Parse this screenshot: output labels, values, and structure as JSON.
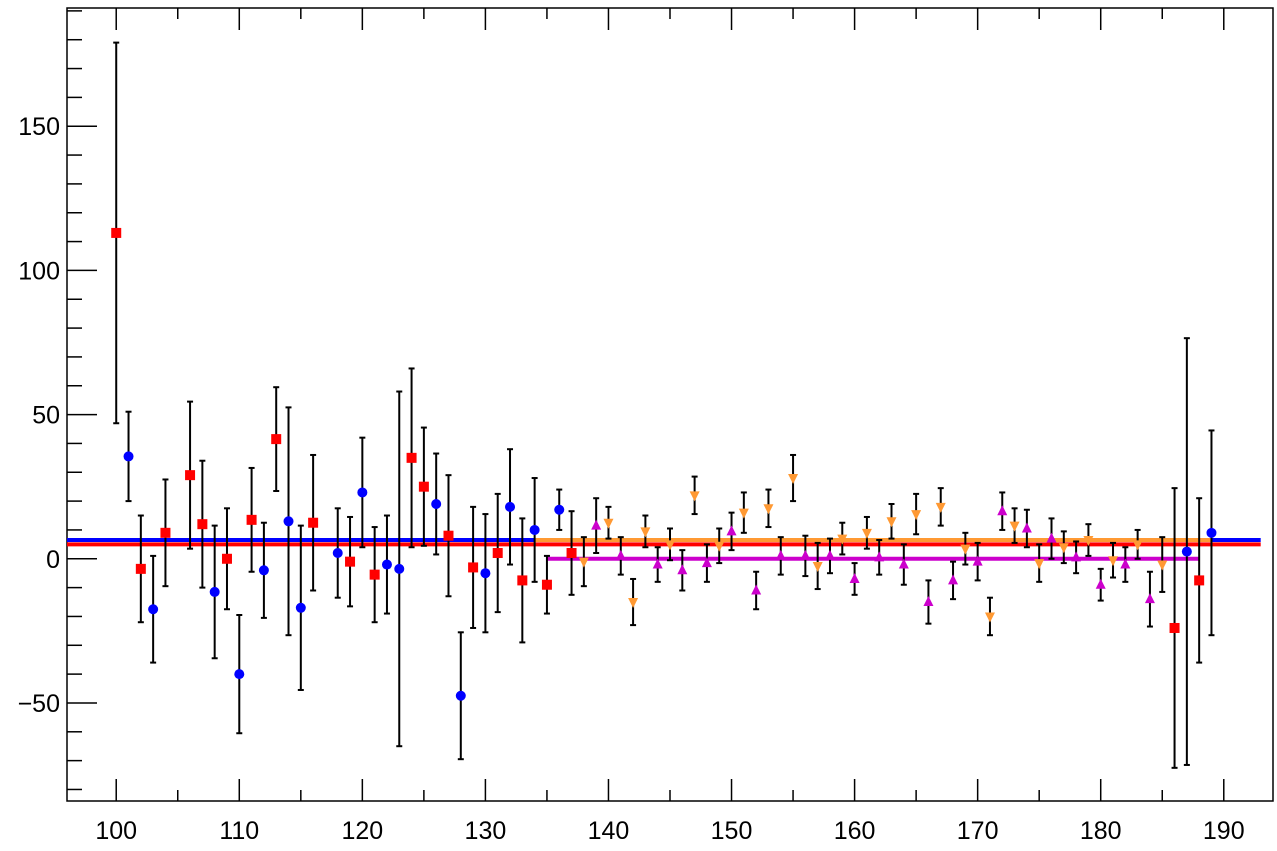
{
  "chart_data": {
    "type": "scatter",
    "title": "",
    "xlabel": "",
    "ylabel": "",
    "xlim": [
      96,
      194
    ],
    "ylim": [
      -84,
      191
    ],
    "x_ticks": [
      100,
      110,
      120,
      130,
      140,
      150,
      160,
      170,
      180,
      190
    ],
    "y_ticks": [
      -50,
      0,
      50,
      100,
      150
    ],
    "x_tick_labels": [
      "100",
      "110",
      "120",
      "130",
      "140",
      "150",
      "160",
      "170",
      "180",
      "190"
    ],
    "y_tick_labels": [
      "−50",
      "0",
      "50",
      "100",
      "150"
    ],
    "grid": false,
    "series": [
      {
        "marker": "circle",
        "color": "#0000ff",
        "points": [
          {
            "x": 101,
            "y": 35.5,
            "err": 15.5
          },
          {
            "x": 103,
            "y": -17.5,
            "err": 18.5
          },
          {
            "x": 108,
            "y": -11.5,
            "err": 23
          },
          {
            "x": 110,
            "y": -40,
            "err": 20.5
          },
          {
            "x": 112,
            "y": -4,
            "err": 16.5
          },
          {
            "x": 114,
            "y": 13,
            "err": 39.5
          },
          {
            "x": 115,
            "y": -17,
            "err": 28.5
          },
          {
            "x": 118,
            "y": 2,
            "err": 15.5
          },
          {
            "x": 120,
            "y": 23,
            "err": 19
          },
          {
            "x": 122,
            "y": -2,
            "err": 17
          },
          {
            "x": 123,
            "y": -3.5,
            "err": 61.5
          },
          {
            "x": 126,
            "y": 19,
            "err": 17.5
          },
          {
            "x": 128,
            "y": -47.5,
            "err": 22
          },
          {
            "x": 130,
            "y": -5,
            "err": 20.5
          },
          {
            "x": 132,
            "y": 18,
            "err": 20
          },
          {
            "x": 134,
            "y": 10,
            "err": 18
          },
          {
            "x": 136,
            "y": 17,
            "err": 7
          },
          {
            "x": 187,
            "y": 2.5,
            "err": 74
          },
          {
            "x": 189,
            "y": 9,
            "err": 35.5
          }
        ]
      },
      {
        "marker": "square",
        "color": "#ff0000",
        "points": [
          {
            "x": 100,
            "y": 113,
            "err": 66
          },
          {
            "x": 102,
            "y": -3.5,
            "err": 18.5
          },
          {
            "x": 104,
            "y": 9,
            "err": 18.5
          },
          {
            "x": 106,
            "y": 29,
            "err": 25.5
          },
          {
            "x": 107,
            "y": 12,
            "err": 22
          },
          {
            "x": 109,
            "y": 0,
            "err": 17.5
          },
          {
            "x": 111,
            "y": 13.5,
            "err": 18
          },
          {
            "x": 113,
            "y": 41.5,
            "err": 18
          },
          {
            "x": 116,
            "y": 12.5,
            "err": 23.5
          },
          {
            "x": 119,
            "y": -1,
            "err": 15.5
          },
          {
            "x": 121,
            "y": -5.5,
            "err": 16.5
          },
          {
            "x": 124,
            "y": 35,
            "err": 31
          },
          {
            "x": 125,
            "y": 25,
            "err": 20.5
          },
          {
            "x": 127,
            "y": 8,
            "err": 21
          },
          {
            "x": 129,
            "y": -3,
            "err": 21
          },
          {
            "x": 131,
            "y": 2,
            "err": 20.5
          },
          {
            "x": 133,
            "y": -7.5,
            "err": 21.5
          },
          {
            "x": 135,
            "y": -9,
            "err": 10
          },
          {
            "x": 137,
            "y": 2,
            "err": 14.5
          },
          {
            "x": 186,
            "y": -24,
            "err": 48.5
          },
          {
            "x": 188,
            "y": -7.5,
            "err": 28.5
          }
        ]
      },
      {
        "marker": "triangle-up",
        "color": "#cc00cc",
        "points": [
          {
            "x": 139,
            "y": 11.5,
            "err": 9.5
          },
          {
            "x": 141,
            "y": 1,
            "err": 6.5
          },
          {
            "x": 144,
            "y": -2,
            "err": 6
          },
          {
            "x": 146,
            "y": -4,
            "err": 7
          },
          {
            "x": 148,
            "y": -1.5,
            "err": 6.5
          },
          {
            "x": 150,
            "y": 9.5,
            "err": 6.5
          },
          {
            "x": 152,
            "y": -11,
            "err": 6.5
          },
          {
            "x": 154,
            "y": 1,
            "err": 6.5
          },
          {
            "x": 156,
            "y": 1,
            "err": 7
          },
          {
            "x": 158,
            "y": 1,
            "err": 6
          },
          {
            "x": 160,
            "y": -7,
            "err": 5.5
          },
          {
            "x": 162,
            "y": 0.5,
            "err": 6
          },
          {
            "x": 164,
            "y": -2,
            "err": 7
          },
          {
            "x": 166,
            "y": -15,
            "err": 7.5
          },
          {
            "x": 168,
            "y": -7.5,
            "err": 6.5
          },
          {
            "x": 170,
            "y": -1,
            "err": 6.5
          },
          {
            "x": 172,
            "y": 16.5,
            "err": 6.5
          },
          {
            "x": 174,
            "y": 10.5,
            "err": 6.5
          },
          {
            "x": 176,
            "y": 7,
            "err": 7
          },
          {
            "x": 178,
            "y": 0.5,
            "err": 5.5
          },
          {
            "x": 180,
            "y": -9,
            "err": 5.5
          },
          {
            "x": 182,
            "y": -2,
            "err": 6
          },
          {
            "x": 184,
            "y": -14,
            "err": 9.5
          }
        ]
      },
      {
        "marker": "triangle-down",
        "color": "#ff9933",
        "points": [
          {
            "x": 138,
            "y": -1,
            "err": 8.5
          },
          {
            "x": 140,
            "y": 12.5,
            "err": 5.5
          },
          {
            "x": 142,
            "y": -15,
            "err": 8
          },
          {
            "x": 143,
            "y": 9.5,
            "err": 5.5
          },
          {
            "x": 145,
            "y": 5,
            "err": 5.5
          },
          {
            "x": 147,
            "y": 22,
            "err": 6.5
          },
          {
            "x": 149,
            "y": 4.5,
            "err": 6
          },
          {
            "x": 151,
            "y": 16,
            "err": 7
          },
          {
            "x": 153,
            "y": 17.5,
            "err": 6.5
          },
          {
            "x": 155,
            "y": 28,
            "err": 8
          },
          {
            "x": 157,
            "y": -2.5,
            "err": 8
          },
          {
            "x": 159,
            "y": 7,
            "err": 5.5
          },
          {
            "x": 161,
            "y": 9,
            "err": 5.5
          },
          {
            "x": 163,
            "y": 13,
            "err": 6
          },
          {
            "x": 165,
            "y": 15.5,
            "err": 7
          },
          {
            "x": 167,
            "y": 18,
            "err": 6.5
          },
          {
            "x": 169,
            "y": 3.5,
            "err": 5.5
          },
          {
            "x": 171,
            "y": -20,
            "err": 6.5
          },
          {
            "x": 173,
            "y": 11.5,
            "err": 6
          },
          {
            "x": 175,
            "y": -1.5,
            "err": 6.5
          },
          {
            "x": 177,
            "y": 4,
            "err": 5.5
          },
          {
            "x": 179,
            "y": 6.5,
            "err": 5.5
          },
          {
            "x": 181,
            "y": -0.5,
            "err": 6
          },
          {
            "x": 183,
            "y": 5,
            "err": 5
          },
          {
            "x": 185,
            "y": -2,
            "err": 9.5
          }
        ]
      }
    ],
    "fit_lines": [
      {
        "color": "#0000ff",
        "x": [
          96,
          193
        ],
        "y": 6.5
      },
      {
        "color": "#ff0000",
        "x": [
          96,
          193
        ],
        "y": 5
      },
      {
        "color": "#ff9933",
        "x": [
          134,
          189
        ],
        "y": 6.5
      },
      {
        "color": "#cc00cc",
        "x": [
          135,
          188
        ],
        "y": 0
      }
    ]
  }
}
